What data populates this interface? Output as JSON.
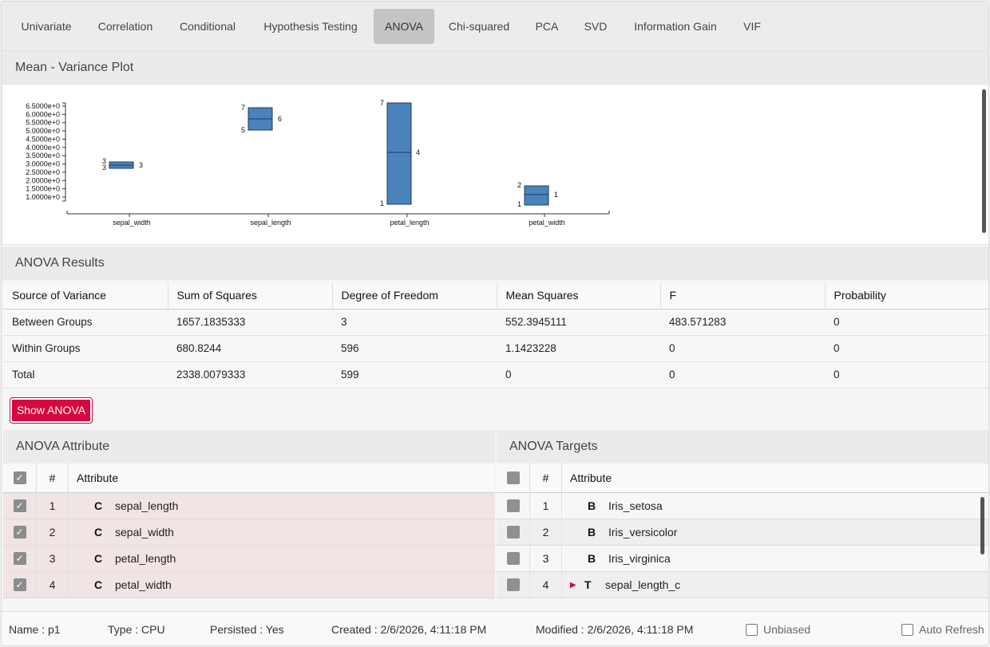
{
  "tabs": [
    {
      "label": "Univariate",
      "active": false
    },
    {
      "label": "Correlation",
      "active": false
    },
    {
      "label": "Conditional",
      "active": false
    },
    {
      "label": "Hypothesis Testing",
      "active": false
    },
    {
      "label": "ANOVA",
      "active": true
    },
    {
      "label": "Chi-squared",
      "active": false
    },
    {
      "label": "PCA",
      "active": false
    },
    {
      "label": "SVD",
      "active": false
    },
    {
      "label": "Information Gain",
      "active": false
    },
    {
      "label": "VIF",
      "active": false
    }
  ],
  "plot": {
    "title": "Mean - Variance Plot",
    "color": "#4a82bc",
    "y_ticks": [
      "6.5000e+0",
      "6.0000e+0",
      "5.5000e+0",
      "5.0000e+0",
      "4.5000e+0",
      "4.0000e+0",
      "3.5000e+0",
      "3.0000e+0",
      "2.5000e+0",
      "2.0000e+0",
      "1.5000e+0",
      "1.0000e+0"
    ],
    "boxes": [
      {
        "name": "sepal_width",
        "low": "3",
        "high": "3",
        "mean": "3"
      },
      {
        "name": "sepal_length",
        "low": "5",
        "high": "7",
        "mean": "6"
      },
      {
        "name": "petal_length",
        "low": "1",
        "high": "7",
        "mean": "4"
      },
      {
        "name": "petal_width",
        "low": "1",
        "high": "2",
        "mean": "1"
      }
    ]
  },
  "anova": {
    "title": "ANOVA Results",
    "columns": [
      "Source of Variance",
      "Sum of Squares",
      "Degree of Freedom",
      "Mean Squares",
      "F",
      "Probability"
    ],
    "rows": [
      [
        "Between Groups",
        "1657.1835333",
        "3",
        "552.3945111",
        "483.571283",
        "0"
      ],
      [
        "Within Groups",
        "680.8244",
        "596",
        "1.1423228",
        "0",
        "0"
      ],
      [
        "Total",
        "2338.0079333",
        "599",
        "0",
        "0",
        "0"
      ]
    ],
    "button": "Show ANOVA"
  },
  "attributes": {
    "title": "ANOVA Attribute",
    "col_num": "#",
    "col_attr": "Attribute",
    "rows": [
      {
        "num": "1",
        "type": "C",
        "name": "sepal_length"
      },
      {
        "num": "2",
        "type": "C",
        "name": "sepal_width"
      },
      {
        "num": "3",
        "type": "C",
        "name": "petal_length"
      },
      {
        "num": "4",
        "type": "C",
        "name": "petal_width"
      }
    ]
  },
  "targets": {
    "title": "ANOVA Targets",
    "col_num": "#",
    "col_attr": "Attribute",
    "rows": [
      {
        "num": "1",
        "type": "B",
        "name": "Iris_setosa"
      },
      {
        "num": "2",
        "type": "B",
        "name": "Iris_versicolor"
      },
      {
        "num": "3",
        "type": "B",
        "name": "Iris_virginica"
      },
      {
        "num": "4",
        "type": "T",
        "name": "sepal_length_c"
      }
    ]
  },
  "footer": {
    "name": "Name : p1",
    "type": "Type : CPU",
    "persisted": "Persisted : Yes",
    "created": "Created : 2/6/2026, 4:11:18 PM",
    "modified": "Modified : 2/6/2026, 4:11:18 PM",
    "unbiased": "Unbiased",
    "auto_refresh": "Auto Refresh"
  }
}
